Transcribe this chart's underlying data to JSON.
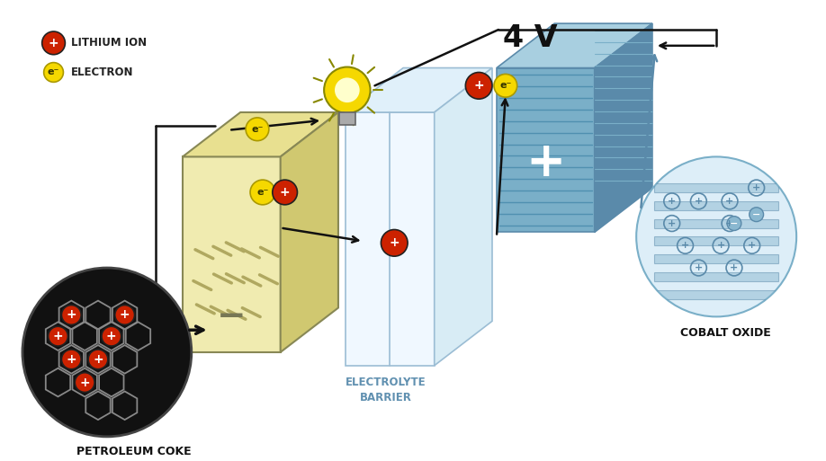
{
  "bg_color": "#ffffff",
  "title_voltage": "4 V",
  "label_lithium_ion": "LITHIUM ION",
  "label_electron": "ELECTRON",
  "label_petroleum_coke": "PETROLEUM COKE",
  "label_barrier": "BARRIER",
  "label_electrolyte": "ELECTROLYTE",
  "label_cobalt_oxide": "COBALT OXIDE",
  "color_red": "#cc2200",
  "color_yellow": "#f5d800",
  "color_dark": "#1a1a1a",
  "color_anode_face": "#f0ebb0",
  "color_anode_top": "#e8e090",
  "color_anode_side": "#d0c870",
  "color_elec_face": "#eaf4fa",
  "color_elec_outline": "#9bbdd4",
  "color_cathode_main": "#7aafc8",
  "color_cathode_light": "#a8cfe0",
  "color_cathode_dark": "#5a8aaa",
  "figsize": [
    9.18,
    5.13
  ],
  "dpi": 100
}
